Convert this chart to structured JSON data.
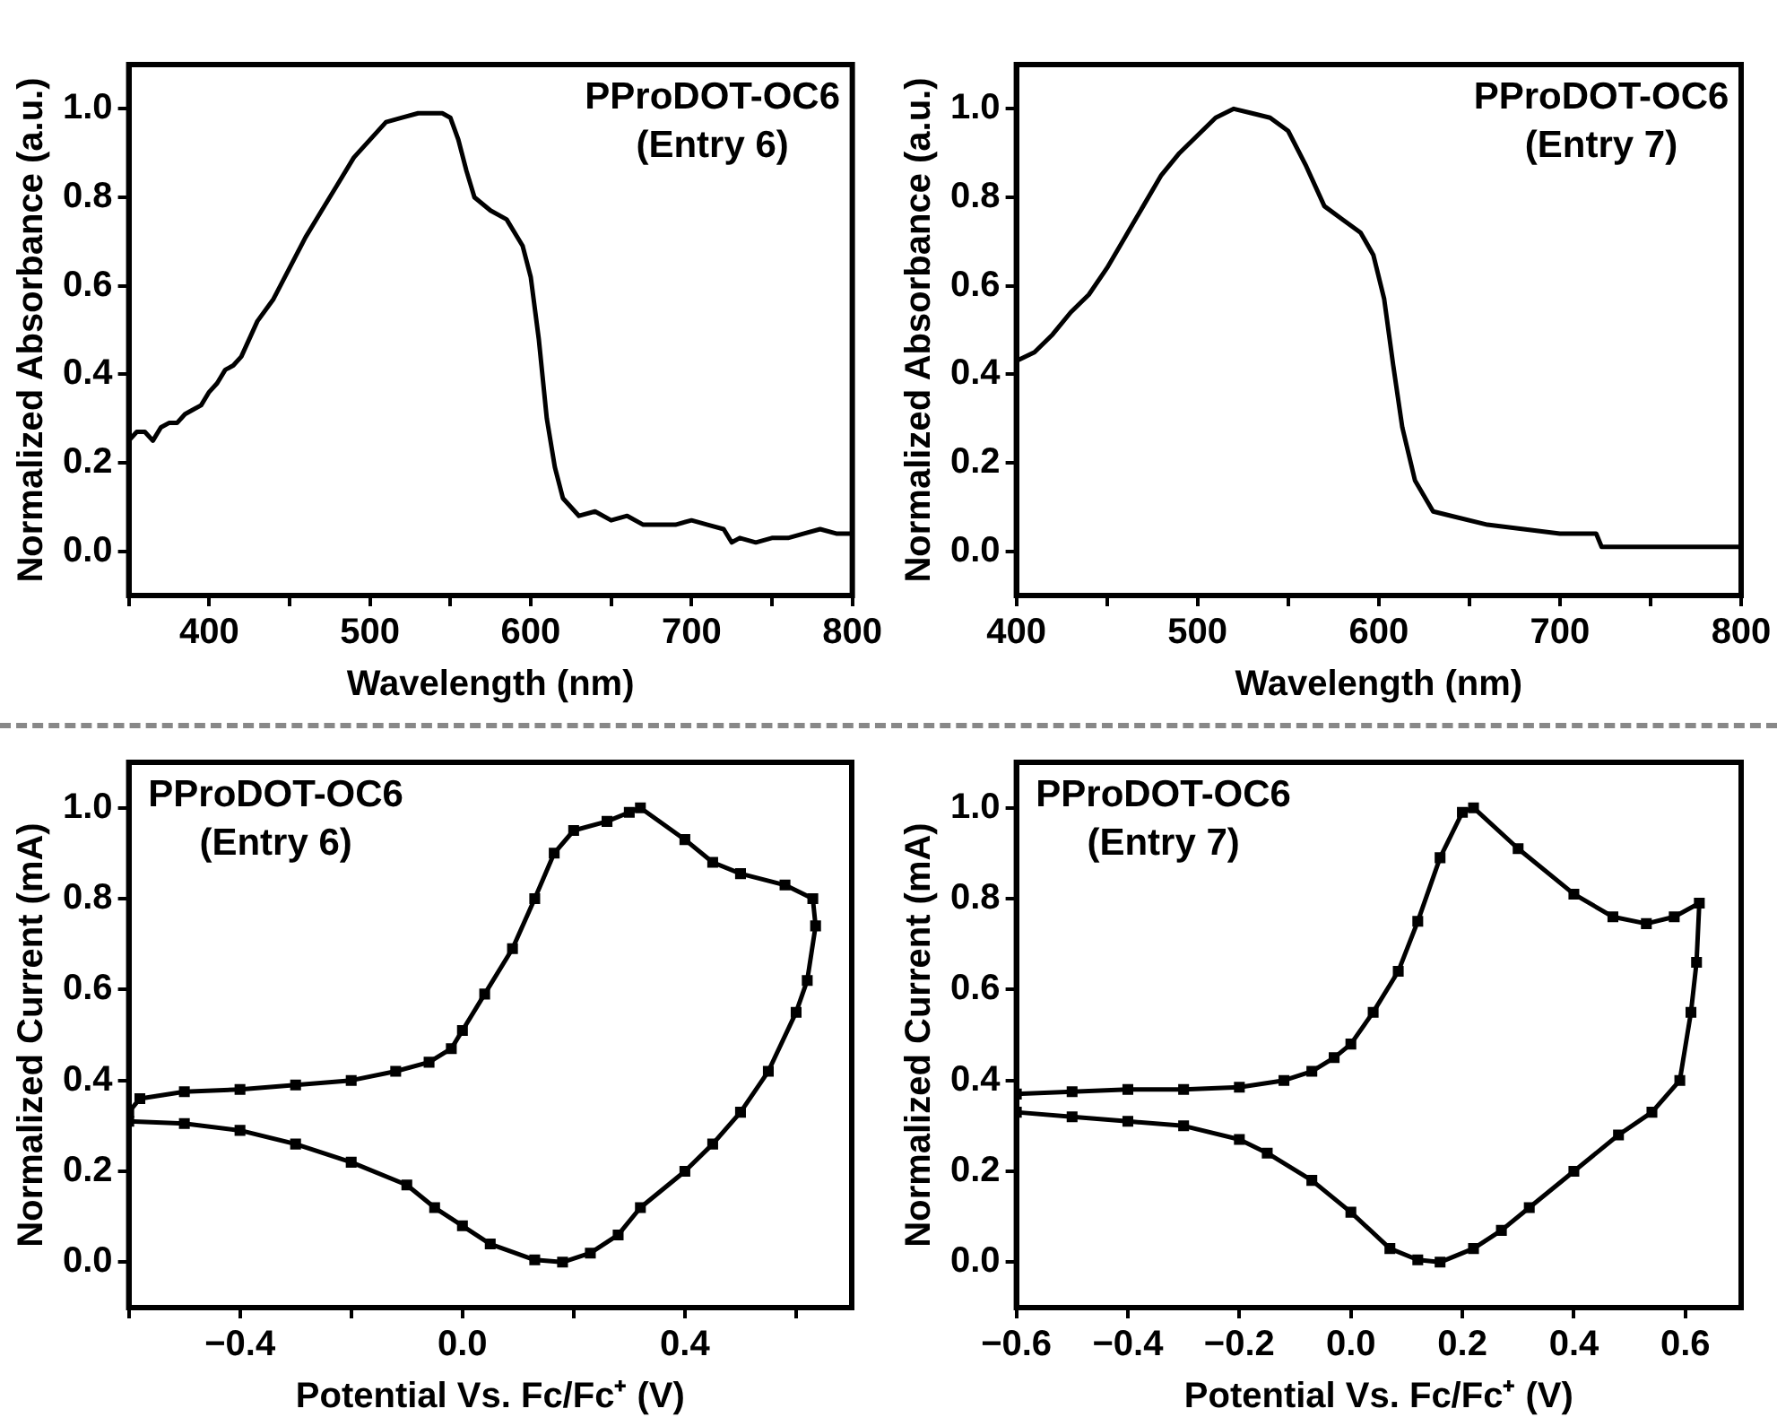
{
  "chart_data": [
    {
      "type": "line",
      "xlabel": "Wavelength (nm)",
      "ylabel": "Normalized Absorbance (a.u.)",
      "annotations": [
        "PProDOT-OC6",
        "(Entry 6)"
      ],
      "marker": "none",
      "xlim": [
        350,
        800
      ],
      "ylim": [
        -0.1,
        1.1
      ],
      "xticks": [
        {
          "value": 350,
          "label": null
        },
        400,
        {
          "value": 450,
          "label": null
        },
        500,
        {
          "value": 550,
          "label": null
        },
        600,
        {
          "value": 650,
          "label": null
        },
        700,
        {
          "value": 750,
          "label": null
        },
        800
      ],
      "yticks": [
        {
          "value": 0,
          "label": "0.0"
        },
        {
          "value": 0.2,
          "label": "0.2"
        },
        {
          "value": 0.4,
          "label": "0.4"
        },
        {
          "value": 0.6,
          "label": "0.6"
        },
        {
          "value": 0.8,
          "label": "0.8"
        },
        {
          "value": 1,
          "label": "1.0"
        }
      ],
      "series": [
        {
          "color": "#000000",
          "x": [
            350,
            355,
            360,
            365,
            370,
            375,
            380,
            385,
            390,
            395,
            400,
            405,
            410,
            415,
            420,
            430,
            440,
            450,
            460,
            470,
            480,
            490,
            500,
            510,
            520,
            530,
            540,
            545,
            550,
            555,
            560,
            565,
            575,
            585,
            595,
            600,
            605,
            610,
            615,
            620,
            630,
            640,
            650,
            660,
            670,
            680,
            690,
            700,
            710,
            720,
            725,
            730,
            740,
            750,
            760,
            770,
            780,
            790,
            800
          ],
          "values": [
            0.25,
            0.27,
            0.27,
            0.25,
            0.28,
            0.29,
            0.29,
            0.31,
            0.32,
            0.33,
            0.36,
            0.38,
            0.41,
            0.42,
            0.44,
            0.52,
            0.57,
            0.64,
            0.71,
            0.77,
            0.83,
            0.89,
            0.93,
            0.97,
            0.98,
            0.99,
            0.99,
            0.99,
            0.98,
            0.93,
            0.86,
            0.8,
            0.77,
            0.75,
            0.69,
            0.62,
            0.48,
            0.3,
            0.19,
            0.12,
            0.08,
            0.09,
            0.07,
            0.08,
            0.06,
            0.06,
            0.06,
            0.07,
            0.06,
            0.05,
            0.02,
            0.03,
            0.02,
            0.03,
            0.03,
            0.04,
            0.05,
            0.04,
            0.04
          ]
        }
      ]
    },
    {
      "type": "line",
      "xlabel": "Wavelength (nm)",
      "ylabel": "Normalized Absorbance (a.u.)",
      "annotations": [
        "PProDOT-OC6",
        "(Entry 7)"
      ],
      "marker": "none",
      "xlim": [
        400,
        800
      ],
      "ylim": [
        -0.1,
        1.1
      ],
      "xticks": [
        400,
        {
          "value": 450,
          "label": null
        },
        500,
        {
          "value": 550,
          "label": null
        },
        600,
        {
          "value": 650,
          "label": null
        },
        700,
        {
          "value": 750,
          "label": null
        },
        800
      ],
      "yticks": [
        {
          "value": 0,
          "label": "0.0"
        },
        {
          "value": 0.2,
          "label": "0.2"
        },
        {
          "value": 0.4,
          "label": "0.4"
        },
        {
          "value": 0.6,
          "label": "0.6"
        },
        {
          "value": 0.8,
          "label": "0.8"
        },
        {
          "value": 1,
          "label": "1.0"
        }
      ],
      "series": [
        {
          "color": "#000000",
          "x": [
            400,
            410,
            420,
            430,
            440,
            450,
            460,
            470,
            480,
            490,
            500,
            510,
            520,
            530,
            540,
            550,
            560,
            570,
            580,
            590,
            597,
            603,
            608,
            613,
            620,
            630,
            640,
            660,
            680,
            700,
            720,
            723,
            750,
            800
          ],
          "values": [
            0.43,
            0.45,
            0.49,
            0.54,
            0.58,
            0.64,
            0.71,
            0.78,
            0.85,
            0.9,
            0.94,
            0.98,
            1.0,
            0.99,
            0.98,
            0.95,
            0.87,
            0.78,
            0.75,
            0.72,
            0.67,
            0.57,
            0.42,
            0.28,
            0.16,
            0.09,
            0.08,
            0.06,
            0.05,
            0.04,
            0.04,
            0.01,
            0.01,
            0.01
          ]
        }
      ]
    },
    {
      "type": "line",
      "xlabel": "Potential Vs. Fc/Fc⁺ (V)",
      "ylabel": "Normalized Current (mA)",
      "annotations": [
        "PProDOT-OC6",
        "(Entry 6)"
      ],
      "marker": "square",
      "xlim": [
        -0.6,
        0.7
      ],
      "ylim": [
        -0.1,
        1.1
      ],
      "xticks": [
        {
          "value": -0.6,
          "label": null
        },
        {
          "value": -0.4,
          "label": "−0.4"
        },
        {
          "value": -0.2,
          "label": null
        },
        {
          "value": 0,
          "label": "0.0"
        },
        {
          "value": 0.2,
          "label": null
        },
        {
          "value": 0.4,
          "label": "0.4"
        },
        {
          "value": 0.6,
          "label": null
        }
      ],
      "yticks": [
        {
          "value": 0,
          "label": "0.0"
        },
        {
          "value": 0.2,
          "label": "0.2"
        },
        {
          "value": 0.4,
          "label": "0.4"
        },
        {
          "value": 0.6,
          "label": "0.6"
        },
        {
          "value": 0.8,
          "label": "0.8"
        },
        {
          "value": 1,
          "label": "1.0"
        }
      ],
      "series": [
        {
          "color": "#000000",
          "x": [
            -0.6,
            -0.58,
            -0.5,
            -0.4,
            -0.3,
            -0.2,
            -0.12,
            -0.06,
            -0.02,
            0.0,
            0.04,
            0.09,
            0.13,
            0.165,
            0.2,
            0.26,
            0.3,
            0.32,
            0.4,
            0.45,
            0.5,
            0.58,
            0.63,
            0.635,
            0.62,
            0.6,
            0.55,
            0.5,
            0.45,
            0.4,
            0.32,
            0.28,
            0.23,
            0.18,
            0.13,
            0.05,
            0.0,
            -0.05,
            -0.1,
            -0.2,
            -0.3,
            -0.4,
            -0.5,
            -0.6
          ],
          "values": [
            0.33,
            0.36,
            0.375,
            0.38,
            0.39,
            0.4,
            0.42,
            0.44,
            0.47,
            0.51,
            0.59,
            0.69,
            0.8,
            0.9,
            0.95,
            0.97,
            0.99,
            1.0,
            0.93,
            0.88,
            0.855,
            0.83,
            0.8,
            0.74,
            0.62,
            0.55,
            0.42,
            0.33,
            0.26,
            0.2,
            0.12,
            0.06,
            0.02,
            0.0,
            0.005,
            0.04,
            0.08,
            0.12,
            0.17,
            0.22,
            0.26,
            0.29,
            0.305,
            0.31
          ]
        }
      ]
    },
    {
      "type": "line",
      "xlabel": "Potential Vs. Fc/Fc⁺ (V)",
      "ylabel": "Normalized Current (mA)",
      "annotations": [
        "PProDOT-OC6",
        "(Entry 7)"
      ],
      "marker": "square",
      "xlim": [
        -0.6,
        0.7
      ],
      "ylim": [
        -0.1,
        1.1
      ],
      "xticks": [
        {
          "value": -0.6,
          "label": "−0.6"
        },
        {
          "value": -0.4,
          "label": "−0.4"
        },
        {
          "value": -0.2,
          "label": "−0.2"
        },
        {
          "value": 0,
          "label": "0.0"
        },
        {
          "value": 0.2,
          "label": "0.2"
        },
        {
          "value": 0.4,
          "label": "0.4"
        },
        {
          "value": 0.6,
          "label": "0.6"
        }
      ],
      "yticks": [
        {
          "value": 0,
          "label": "0.0"
        },
        {
          "value": 0.2,
          "label": "0.2"
        },
        {
          "value": 0.4,
          "label": "0.4"
        },
        {
          "value": 0.6,
          "label": "0.6"
        },
        {
          "value": 0.8,
          "label": "0.8"
        },
        {
          "value": 1,
          "label": "1.0"
        }
      ],
      "series": [
        {
          "color": "#000000",
          "x": [
            -0.6,
            -0.5,
            -0.4,
            -0.3,
            -0.2,
            -0.12,
            -0.07,
            -0.03,
            0.0,
            0.04,
            0.085,
            0.12,
            0.16,
            0.2,
            0.22,
            0.3,
            0.4,
            0.47,
            0.53,
            0.58,
            0.625,
            0.62,
            0.61,
            0.59,
            0.54,
            0.48,
            0.4,
            0.32,
            0.27,
            0.22,
            0.16,
            0.12,
            0.07,
            0.0,
            -0.07,
            -0.15,
            -0.2,
            -0.3,
            -0.4,
            -0.5,
            -0.6
          ],
          "values": [
            0.37,
            0.375,
            0.38,
            0.38,
            0.385,
            0.4,
            0.42,
            0.45,
            0.48,
            0.55,
            0.64,
            0.75,
            0.89,
            0.99,
            1.0,
            0.91,
            0.81,
            0.76,
            0.745,
            0.76,
            0.79,
            0.66,
            0.55,
            0.4,
            0.33,
            0.28,
            0.2,
            0.12,
            0.07,
            0.03,
            0.0,
            0.005,
            0.03,
            0.11,
            0.18,
            0.24,
            0.27,
            0.3,
            0.31,
            0.32,
            0.33
          ]
        }
      ]
    }
  ]
}
